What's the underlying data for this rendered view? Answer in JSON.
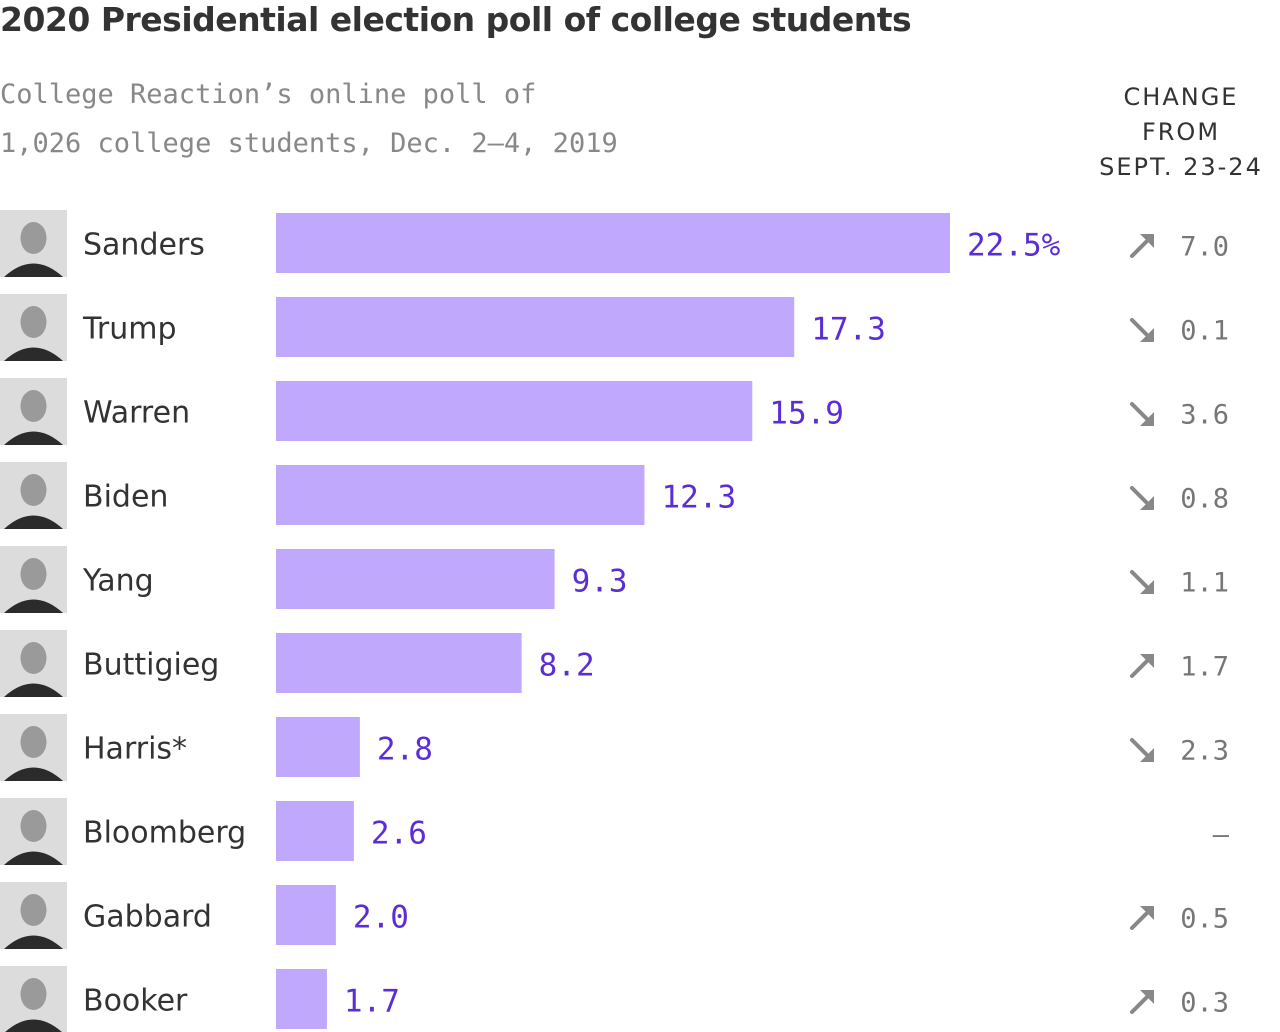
{
  "header": {
    "title": "2020 Presidential election poll of college students",
    "subtitle_line1": "College Reaction’s online poll of",
    "subtitle_line2": "1,026 college students, Dec. 2–4, 2019",
    "change_header_line1": "CHANGE",
    "change_header_line2": "FROM",
    "change_header_line3": "SEPT. 23-24"
  },
  "colors": {
    "bar": "#c0a8fc",
    "value_text": "#5a2dd6",
    "arrow": "#888888"
  },
  "chart_data": {
    "type": "bar",
    "orientation": "horizontal",
    "title": "2020 Presidential election poll of college students",
    "categories": [
      "Sanders",
      "Trump",
      "Warren",
      "Biden",
      "Yang",
      "Buttigieg",
      "Harris*",
      "Bloomberg",
      "Gabbard",
      "Booker"
    ],
    "values": [
      22.5,
      17.3,
      15.9,
      12.3,
      9.3,
      8.2,
      2.8,
      2.6,
      2.0,
      1.7
    ],
    "value_labels": [
      "22.5%",
      "17.3",
      "15.9",
      "12.3",
      "9.3",
      "8.2",
      "2.8",
      "2.6",
      "2.0",
      "1.7"
    ],
    "change": [
      {
        "direction": "up",
        "text": "7.0"
      },
      {
        "direction": "down",
        "text": "0.1"
      },
      {
        "direction": "down",
        "text": "3.6"
      },
      {
        "direction": "down",
        "text": "0.8"
      },
      {
        "direction": "down",
        "text": "1.1"
      },
      {
        "direction": "up",
        "text": "1.7"
      },
      {
        "direction": "down",
        "text": "2.3"
      },
      {
        "direction": "none",
        "text": "–"
      },
      {
        "direction": "up",
        "text": "0.5"
      },
      {
        "direction": "up",
        "text": "0.3"
      }
    ],
    "xlim": [
      0,
      22.5
    ],
    "grid": false,
    "legend": "none"
  }
}
